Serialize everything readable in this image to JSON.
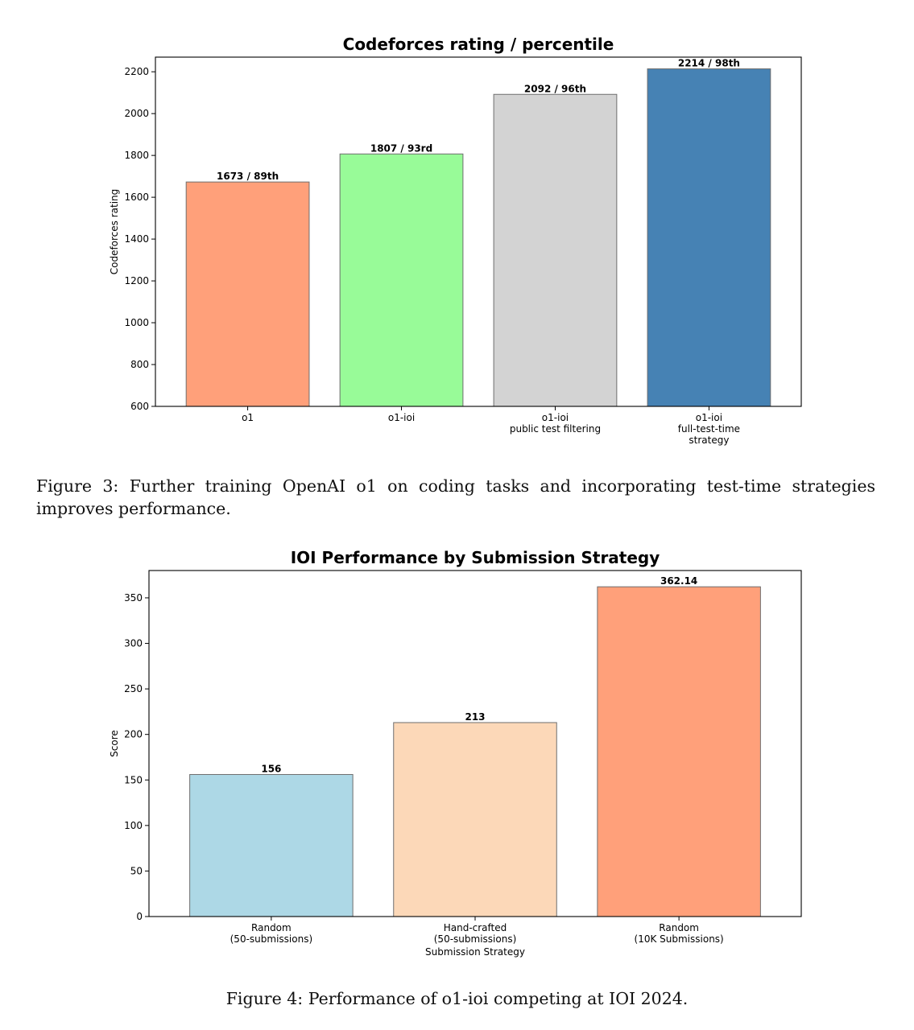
{
  "chart_data": [
    {
      "type": "bar",
      "title": "Codeforces rating / percentile",
      "xlabel": "",
      "ylabel": "Codeforces rating",
      "ylim": [
        600,
        2270
      ],
      "yticks": [
        600,
        800,
        1000,
        1200,
        1400,
        1600,
        1800,
        2000,
        2200
      ],
      "categories": [
        [
          "o1"
        ],
        [
          "o1-ioi"
        ],
        [
          "o1-ioi",
          "public test filtering"
        ],
        [
          "o1-ioi",
          "full-test-time",
          "strategy"
        ]
      ],
      "values": [
        1673,
        1807,
        2092,
        2214
      ],
      "data_labels": [
        "1673 / 89th",
        "1807 / 93rd",
        "2092 / 96th",
        "2214 / 98th"
      ],
      "colors": [
        "#FFA07A",
        "#98FB98",
        "#D3D3D3",
        "#4682B4"
      ],
      "grid": false
    },
    {
      "type": "bar",
      "title": "IOI Performance by Submission Strategy",
      "xlabel": "Submission Strategy",
      "ylabel": "Score",
      "ylim": [
        0,
        380
      ],
      "yticks": [
        0,
        50,
        100,
        150,
        200,
        250,
        300,
        350
      ],
      "categories": [
        [
          "Random",
          "(50-submissions)"
        ],
        [
          "Hand-crafted",
          "(50-submissions)"
        ],
        [
          "Random",
          "(10K Submissions)"
        ]
      ],
      "values": [
        156,
        213,
        362.14
      ],
      "data_labels": [
        "156",
        "213",
        "362.14"
      ],
      "colors": [
        "#ADD8E6",
        "#FCD8B8",
        "#FFA07A"
      ],
      "grid": false
    }
  ],
  "captions": {
    "figure3": "Figure 3: Further training OpenAI o1 on coding tasks and incorporating test-time strategies improves performance.",
    "figure4": "Figure 4: Performance of o1-ioi competing at IOI 2024."
  }
}
